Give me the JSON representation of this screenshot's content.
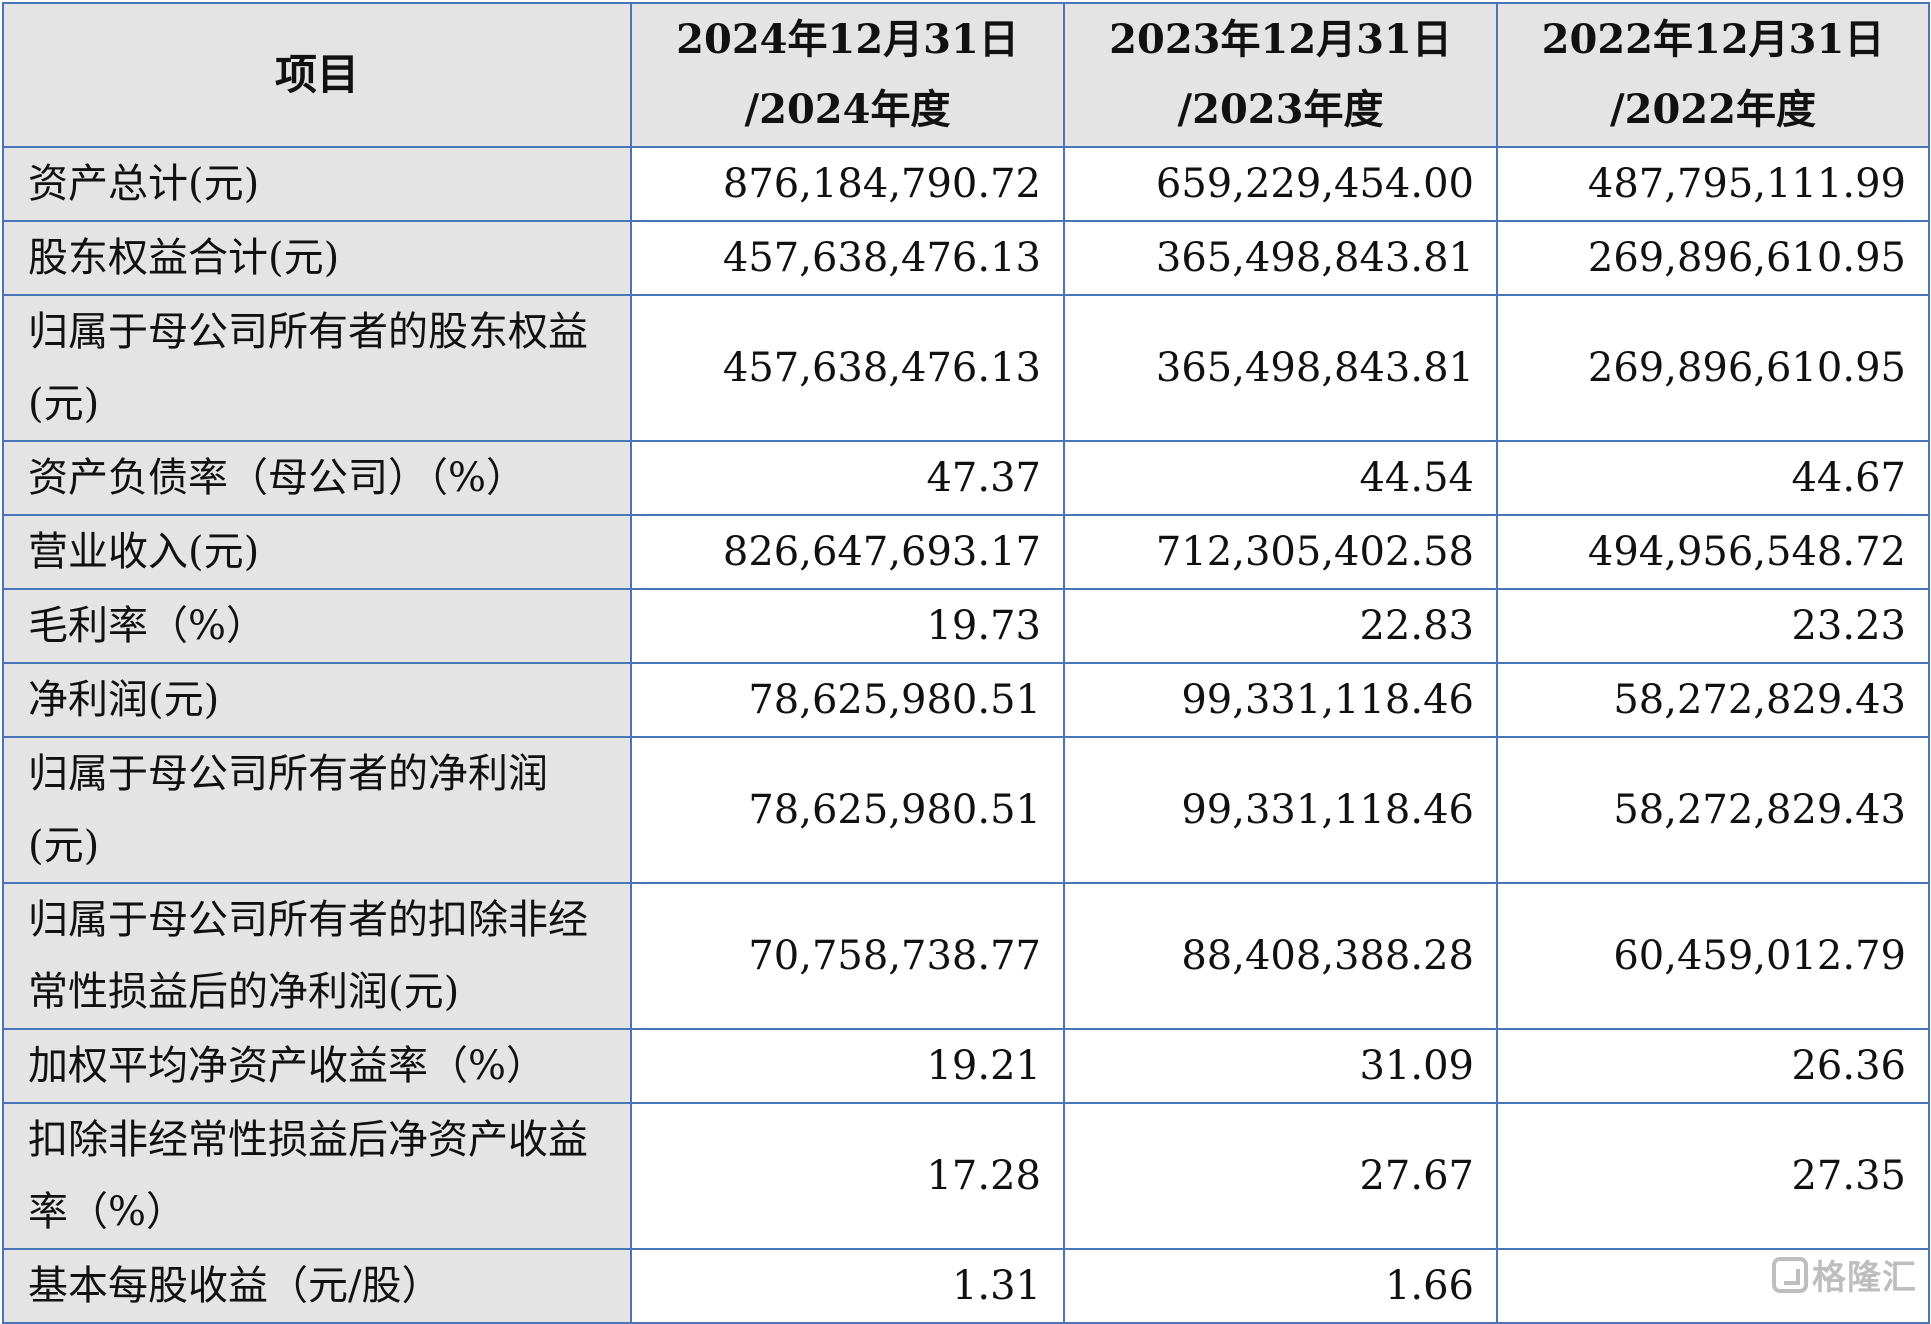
{
  "header": {
    "item": "项目",
    "cols": [
      {
        "line1": "2024年12月31日",
        "line2": "/2024年度"
      },
      {
        "line1": "2023年12月31日",
        "line2": "/2023年度"
      },
      {
        "line1": "2022年12月31日",
        "line2": "/2022年度"
      }
    ]
  },
  "rows": [
    {
      "label": "资产总计(元)",
      "values": [
        "876,184,790.72",
        "659,229,454.00",
        "487,795,111.99"
      ]
    },
    {
      "label": "股东权益合计(元)",
      "values": [
        "457,638,476.13",
        "365,498,843.81",
        "269,896,610.95"
      ]
    },
    {
      "label": "归属于母公司所有者的股东权益(元)",
      "values": [
        "457,638,476.13",
        "365,498,843.81",
        "269,896,610.95"
      ]
    },
    {
      "label": "资产负债率（母公司）（%）",
      "values": [
        "47.37",
        "44.54",
        "44.67"
      ]
    },
    {
      "label": "营业收入(元)",
      "values": [
        "826,647,693.17",
        "712,305,402.58",
        "494,956,548.72"
      ]
    },
    {
      "label": "毛利率（%）",
      "values": [
        "19.73",
        "22.83",
        "23.23"
      ]
    },
    {
      "label": "净利润(元)",
      "values": [
        "78,625,980.51",
        "99,331,118.46",
        "58,272,829.43"
      ]
    },
    {
      "label": "归属于母公司所有者的净利润(元)",
      "values": [
        "78,625,980.51",
        "99,331,118.46",
        "58,272,829.43"
      ]
    },
    {
      "label": "归属于母公司所有者的扣除非经常性损益后的净利润(元)",
      "values": [
        "70,758,738.77",
        "88,408,388.28",
        "60,459,012.79"
      ]
    },
    {
      "label": "加权平均净资产收益率（%）",
      "values": [
        "19.21",
        "31.09",
        "26.36"
      ]
    },
    {
      "label": "扣除非经常性损益后净资产收益率（%）",
      "values": [
        "17.28",
        "27.67",
        "27.35"
      ]
    },
    {
      "label": "基本每股收益（元/股）",
      "values": [
        "1.31",
        "1.66",
        ""
      ]
    }
  ],
  "watermark": {
    "text": "格隆汇",
    "icon": "gelonghui-logo-icon"
  }
}
